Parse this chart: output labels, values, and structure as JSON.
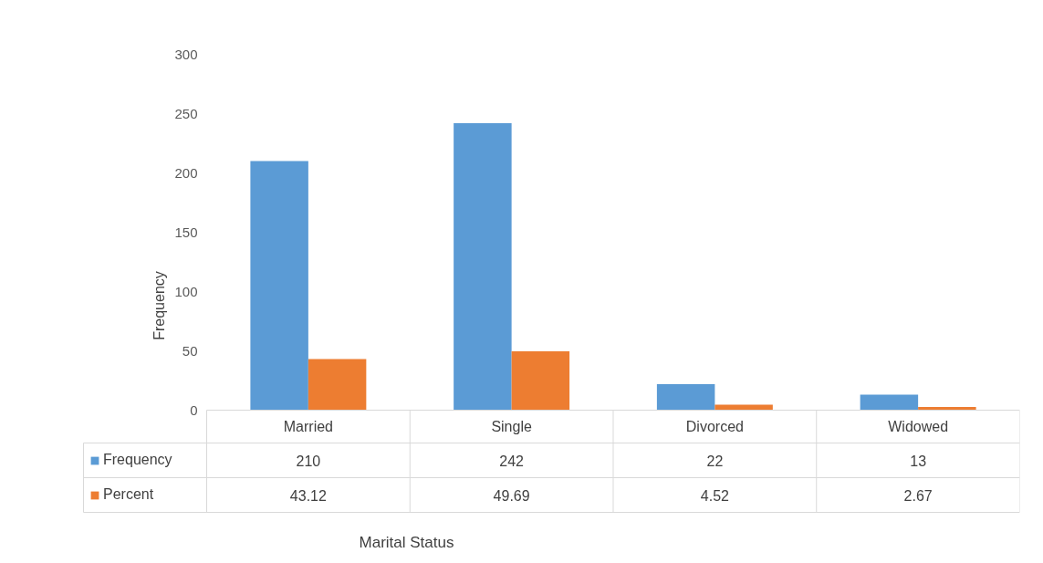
{
  "chart_data": {
    "type": "bar",
    "annotations": [
      "Marital Status"
    ],
    "ylabel": "Frequency",
    "categories": [
      "Married",
      "Single",
      "Divorced",
      "Widowed"
    ],
    "series": [
      {
        "name": "Frequency",
        "color": "#5b9bd5",
        "values": [
          210,
          242,
          22,
          13
        ]
      },
      {
        "name": "Percent",
        "color": "#ed7d31",
        "values": [
          43.12,
          49.69,
          4.52,
          2.67
        ]
      }
    ],
    "ylim": [
      0,
      300
    ],
    "yticks": [
      0,
      50,
      100,
      150,
      200,
      250,
      300
    ],
    "grid": false,
    "legend": "bottom",
    "data_labels": true
  }
}
